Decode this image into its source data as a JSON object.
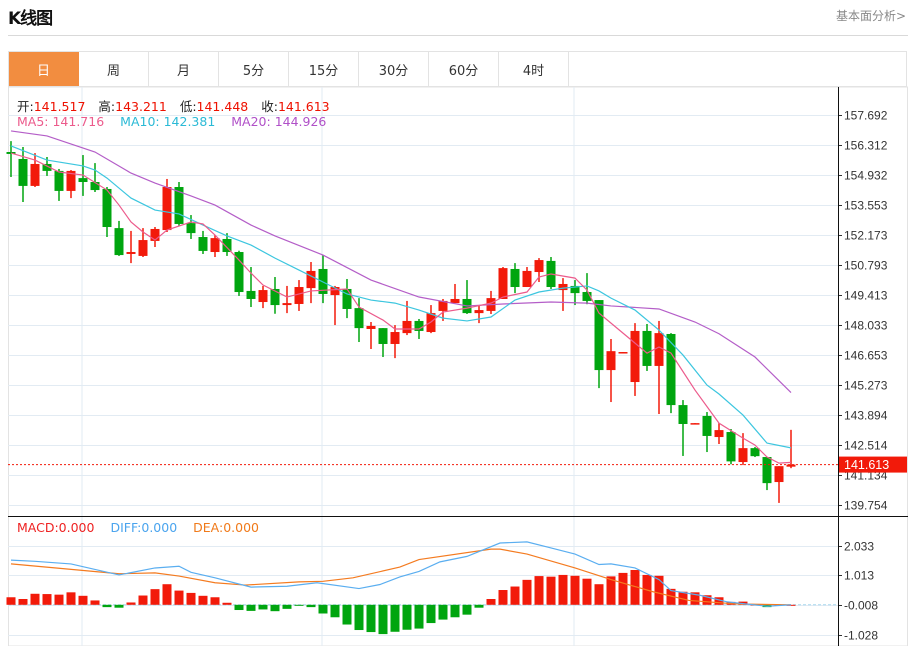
{
  "header": {
    "title": "K线图",
    "fundamental_link": "基本面分析>"
  },
  "tabs": [
    {
      "label": "日",
      "active": true
    },
    {
      "label": "周",
      "active": false
    },
    {
      "label": "月",
      "active": false
    },
    {
      "label": "5分",
      "active": false
    },
    {
      "label": "15分",
      "active": false
    },
    {
      "label": "30分",
      "active": false
    },
    {
      "label": "60分",
      "active": false
    },
    {
      "label": "4时",
      "active": false
    }
  ],
  "ohlc_info": {
    "open_label": "开:",
    "open": "141.517",
    "high_label": "高:",
    "high": "143.211",
    "low_label": "低:",
    "low": "141.448",
    "close_label": "收:",
    "close": "141.613"
  },
  "ma_info": {
    "ma5": "MA5: 141.716",
    "ma10": "MA10: 142.381",
    "ma20": "MA20: 144.926"
  },
  "macd_info": {
    "macd": "MACD:0.000",
    "diff": "DIFF:0.000",
    "dea": "DEA:0.000"
  },
  "colors": {
    "up": "#f21a0a",
    "down": "#00a50f",
    "ma5": "#ec5b8c",
    "ma10": "#3cc6df",
    "ma20": "#b45ec8",
    "diff": "#5aaef0",
    "dea": "#f47b20",
    "active_tab": "#f28d40"
  },
  "chart_data": {
    "type": "candlestick",
    "current_price": "141.613",
    "price_axis": {
      "ticks": [
        "157.692",
        "156.312",
        "154.932",
        "153.553",
        "152.173",
        "150.793",
        "149.413",
        "148.033",
        "146.653",
        "145.273",
        "143.894",
        "142.514",
        "141.134",
        "139.754"
      ],
      "range": [
        139.754,
        157.692
      ]
    },
    "candles": [
      [
        155.99,
        156.49,
        154.84,
        155.9
      ],
      [
        155.67,
        156.22,
        153.69,
        154.43
      ],
      [
        154.43,
        155.94,
        154.38,
        155.44
      ],
      [
        155.44,
        155.76,
        154.89,
        155.12
      ],
      [
        155.12,
        155.21,
        153.74,
        154.2
      ],
      [
        154.2,
        155.16,
        153.87,
        155.12
      ],
      [
        154.79,
        155.85,
        153.97,
        154.61
      ],
      [
        154.61,
        155.48,
        154.15,
        154.24
      ],
      [
        154.29,
        154.38,
        152.08,
        152.54
      ],
      [
        152.49,
        152.82,
        151.21,
        151.25
      ],
      [
        151.3,
        152.36,
        150.88,
        151.39
      ],
      [
        151.21,
        152.49,
        151.16,
        151.94
      ],
      [
        151.9,
        152.54,
        151.62,
        152.45
      ],
      [
        152.4,
        154.75,
        152.31,
        154.38
      ],
      [
        154.38,
        154.61,
        152.6,
        152.68
      ],
      [
        152.72,
        153.09,
        151.99,
        152.26
      ],
      [
        152.08,
        152.36,
        151.3,
        151.44
      ],
      [
        151.39,
        152.17,
        151.16,
        152.03
      ],
      [
        151.99,
        152.26,
        151.21,
        151.39
      ],
      [
        151.39,
        151.45,
        149.37,
        149.55
      ],
      [
        149.6,
        150.7,
        148.86,
        149.23
      ],
      [
        149.09,
        149.83,
        148.81,
        149.64
      ],
      [
        149.69,
        150.24,
        148.55,
        148.95
      ],
      [
        148.95,
        149.83,
        148.58,
        149.04
      ],
      [
        149.0,
        150.1,
        148.68,
        149.78
      ],
      [
        149.73,
        150.93,
        149.04,
        150.52
      ],
      [
        150.61,
        151.25,
        149.04,
        149.46
      ],
      [
        149.41,
        149.83,
        148.03,
        149.78
      ],
      [
        149.69,
        150.15,
        148.35,
        148.77
      ],
      [
        148.81,
        149.27,
        147.25,
        147.89
      ],
      [
        147.85,
        148.17,
        146.93,
        147.99
      ],
      [
        147.89,
        147.89,
        146.56,
        147.16
      ],
      [
        147.16,
        148.03,
        146.51,
        147.71
      ],
      [
        147.66,
        149.14,
        147.57,
        148.22
      ],
      [
        148.22,
        148.31,
        147.39,
        147.76
      ],
      [
        147.71,
        148.95,
        147.66,
        148.58
      ],
      [
        148.68,
        149.23,
        148.22,
        149.14
      ],
      [
        149.04,
        149.92,
        149.04,
        149.23
      ],
      [
        149.23,
        150.1,
        148.54,
        148.58
      ],
      [
        148.58,
        148.95,
        148.12,
        148.72
      ],
      [
        148.68,
        149.6,
        148.54,
        149.27
      ],
      [
        149.23,
        150.7,
        149.23,
        150.65
      ],
      [
        150.61,
        150.88,
        149.5,
        149.78
      ],
      [
        149.78,
        150.7,
        149.78,
        150.52
      ],
      [
        150.47,
        151.11,
        150.01,
        151.02
      ],
      [
        150.98,
        151.16,
        149.69,
        149.78
      ],
      [
        149.64,
        150.19,
        148.68,
        149.92
      ],
      [
        149.83,
        150.1,
        148.95,
        149.5
      ],
      [
        149.55,
        150.42,
        148.99,
        149.14
      ],
      [
        149.18,
        149.18,
        145.13,
        145.96
      ],
      [
        145.96,
        147.39,
        144.49,
        146.83
      ],
      [
        146.77,
        146.79,
        146.77,
        146.79
      ],
      [
        145.41,
        148.12,
        144.77,
        147.76
      ],
      [
        147.76,
        148.08,
        145.92,
        146.15
      ],
      [
        146.15,
        148.22,
        143.94,
        147.66
      ],
      [
        147.62,
        147.66,
        143.98,
        144.35
      ],
      [
        144.35,
        144.58,
        142.01,
        143.48
      ],
      [
        143.5,
        143.52,
        143.5,
        143.52
      ],
      [
        143.85,
        144.03,
        142.19,
        142.93
      ],
      [
        142.88,
        143.52,
        142.56,
        143.2
      ],
      [
        143.11,
        143.25,
        141.63,
        141.76
      ],
      [
        141.73,
        143.06,
        141.59,
        142.37
      ],
      [
        142.37,
        142.42,
        141.96,
        142.0
      ],
      [
        141.96,
        141.96,
        140.44,
        140.76
      ],
      [
        140.81,
        141.54,
        139.85,
        141.54
      ],
      [
        141.517,
        143.211,
        141.448,
        141.613
      ]
    ],
    "ma5": [
      [
        0,
        155.94
      ],
      [
        2,
        155.62
      ],
      [
        4,
        155.07
      ],
      [
        6,
        154.93
      ],
      [
        8,
        154.24
      ],
      [
        9,
        153.55
      ],
      [
        10,
        152.77
      ],
      [
        11,
        152.31
      ],
      [
        12,
        151.94
      ],
      [
        13,
        152.4
      ],
      [
        15,
        152.77
      ],
      [
        16,
        152.68
      ],
      [
        17,
        152.17
      ],
      [
        19,
        151.02
      ],
      [
        20,
        150.42
      ],
      [
        21,
        149.87
      ],
      [
        23,
        149.32
      ],
      [
        25,
        149.6
      ],
      [
        28,
        149.69
      ],
      [
        29,
        148.86
      ],
      [
        31,
        148.26
      ],
      [
        32,
        147.85
      ],
      [
        34,
        147.85
      ],
      [
        35,
        148.17
      ],
      [
        36,
        148.63
      ],
      [
        38,
        148.81
      ],
      [
        40,
        149.04
      ],
      [
        41,
        149.32
      ],
      [
        43,
        149.55
      ],
      [
        44,
        150.24
      ],
      [
        45,
        150.38
      ],
      [
        47,
        150.19
      ],
      [
        48,
        149.64
      ],
      [
        49,
        148.58
      ],
      [
        51,
        147.66
      ],
      [
        53,
        146.74
      ],
      [
        54,
        147.02
      ],
      [
        55,
        146.74
      ],
      [
        57,
        145.04
      ],
      [
        59,
        143.52
      ],
      [
        61,
        142.83
      ],
      [
        62,
        142.51
      ],
      [
        63,
        141.96
      ],
      [
        64,
        141.68
      ],
      [
        65,
        141.716
      ]
    ],
    "ma10": [
      [
        0,
        156.27
      ],
      [
        3,
        155.62
      ],
      [
        6,
        155.35
      ],
      [
        7,
        155.16
      ],
      [
        8,
        154.79
      ],
      [
        10,
        153.87
      ],
      [
        12,
        153.32
      ],
      [
        14,
        153.14
      ],
      [
        16,
        152.63
      ],
      [
        18,
        152.13
      ],
      [
        20,
        151.71
      ],
      [
        22,
        151.11
      ],
      [
        24,
        150.56
      ],
      [
        26,
        150.01
      ],
      [
        28,
        149.46
      ],
      [
        30,
        149.18
      ],
      [
        32,
        149.04
      ],
      [
        34,
        148.72
      ],
      [
        36,
        148.35
      ],
      [
        38,
        148.22
      ],
      [
        40,
        148.4
      ],
      [
        42,
        149.18
      ],
      [
        44,
        149.55
      ],
      [
        46,
        149.73
      ],
      [
        48,
        149.83
      ],
      [
        49,
        149.6
      ],
      [
        50,
        149.27
      ],
      [
        52,
        148.72
      ],
      [
        54,
        147.8
      ],
      [
        56,
        146.65
      ],
      [
        58,
        145.27
      ],
      [
        59,
        144.86
      ],
      [
        61,
        143.89
      ],
      [
        63,
        142.6
      ],
      [
        65,
        142.381
      ]
    ],
    "ma20": [
      [
        0,
        156.96
      ],
      [
        3,
        156.73
      ],
      [
        7,
        155.99
      ],
      [
        10,
        155.02
      ],
      [
        12,
        154.56
      ],
      [
        15,
        153.97
      ],
      [
        17,
        153.55
      ],
      [
        20,
        152.63
      ],
      [
        22,
        152.13
      ],
      [
        26,
        151.25
      ],
      [
        30,
        150.1
      ],
      [
        34,
        149.32
      ],
      [
        38,
        148.91
      ],
      [
        41,
        149.0
      ],
      [
        45,
        149.09
      ],
      [
        48,
        149.04
      ],
      [
        50,
        148.91
      ],
      [
        54,
        148.77
      ],
      [
        57,
        148.17
      ],
      [
        59,
        147.63
      ],
      [
        62,
        146.56
      ],
      [
        65,
        144.926
      ]
    ],
    "macd_axis": {
      "ticks": [
        "2.033",
        "1.013",
        "-0.008",
        "-1.028"
      ],
      "range": [
        -1.4,
        3.0
      ]
    },
    "macd_hist": [
      0.26,
      0.2,
      0.38,
      0.37,
      0.35,
      0.43,
      0.31,
      0.15,
      -0.08,
      -0.1,
      0.08,
      0.32,
      0.54,
      0.71,
      0.49,
      0.41,
      0.31,
      0.26,
      0.07,
      -0.18,
      -0.21,
      -0.16,
      -0.22,
      -0.14,
      -0.03,
      -0.08,
      -0.3,
      -0.43,
      -0.68,
      -0.87,
      -0.94,
      -1.01,
      -0.93,
      -0.86,
      -0.82,
      -0.63,
      -0.51,
      -0.43,
      -0.34,
      -0.1,
      0.2,
      0.51,
      0.63,
      0.86,
      0.99,
      0.97,
      1.03,
      1.0,
      0.9,
      0.71,
      0.98,
      1.1,
      1.2,
      1.03,
      1.0,
      0.55,
      0.45,
      0.43,
      0.33,
      0.26,
      0.1,
      0.11,
      0.01,
      -0.08,
      0.01,
      0.0
    ],
    "diff": [
      [
        0,
        1.54
      ],
      [
        2,
        1.5
      ],
      [
        5,
        1.41
      ],
      [
        9,
        1.03
      ],
      [
        12,
        1.27
      ],
      [
        14,
        1.33
      ],
      [
        15,
        1.12
      ],
      [
        17,
        0.93
      ],
      [
        20,
        0.61
      ],
      [
        23,
        0.64
      ],
      [
        25.5,
        0.76
      ],
      [
        29,
        0.56
      ],
      [
        30.75,
        0.7
      ],
      [
        32.4,
        0.96
      ],
      [
        34,
        1.15
      ],
      [
        35.75,
        1.48
      ],
      [
        38,
        1.67
      ],
      [
        40.75,
        2.13
      ],
      [
        43,
        2.17
      ],
      [
        45,
        1.96
      ],
      [
        47,
        1.75
      ],
      [
        49,
        1.39
      ],
      [
        50,
        1.41
      ],
      [
        52,
        1.27
      ],
      [
        54,
        0.87
      ],
      [
        55,
        0.49
      ],
      [
        57.4,
        0.33
      ],
      [
        59.7,
        0.1
      ],
      [
        63,
        -0.05
      ],
      [
        65,
        0.0
      ]
    ],
    "dea": [
      [
        0,
        1.41
      ],
      [
        9,
        1.07
      ],
      [
        12,
        1.1
      ],
      [
        14,
        0.99
      ],
      [
        17,
        0.76
      ],
      [
        19.5,
        0.68
      ],
      [
        24,
        0.79
      ],
      [
        26,
        0.81
      ],
      [
        28.5,
        0.93
      ],
      [
        32.4,
        1.3
      ],
      [
        34,
        1.56
      ],
      [
        40,
        1.92
      ],
      [
        40.75,
        1.92
      ],
      [
        43,
        1.75
      ],
      [
        47,
        1.27
      ],
      [
        50,
        0.87
      ],
      [
        53.5,
        0.45
      ],
      [
        56.5,
        0.15
      ],
      [
        60.4,
        0.03
      ],
      [
        65,
        0.0
      ]
    ]
  }
}
